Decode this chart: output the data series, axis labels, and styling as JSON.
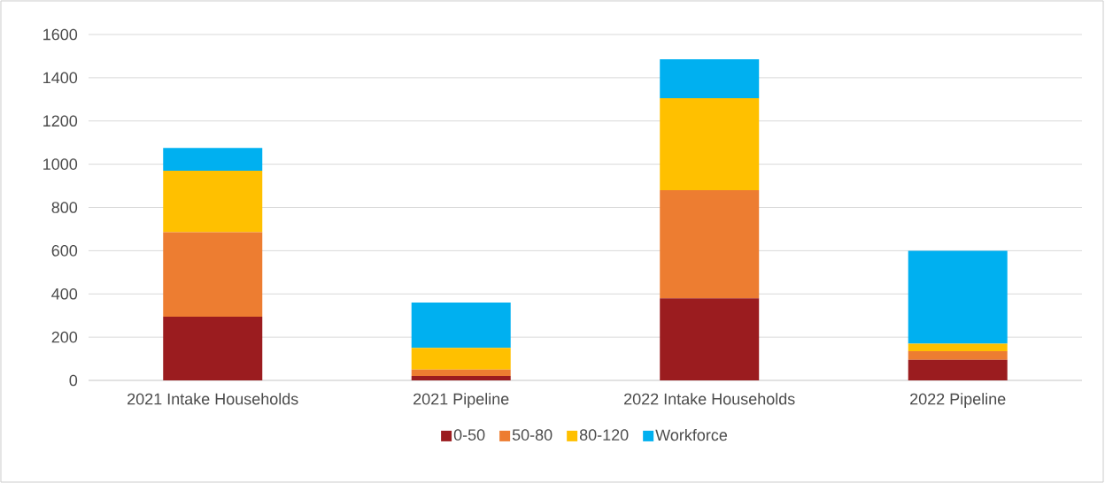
{
  "chart_data": {
    "type": "bar",
    "stacked": true,
    "categories": [
      "2021 Intake Households",
      "2021 Pipeline",
      "2022 Intake Households",
      "2022 Pipeline"
    ],
    "series": [
      {
        "name": "0-50",
        "color": "#9b1c1f",
        "values": [
          295,
          20,
          380,
          95
        ]
      },
      {
        "name": "50-80",
        "color": "#ed7d31",
        "values": [
          390,
          30,
          500,
          40
        ]
      },
      {
        "name": "80-120",
        "color": "#ffc000",
        "values": [
          285,
          100,
          425,
          35
        ]
      },
      {
        "name": "Workforce",
        "color": "#00b0f0",
        "values": [
          105,
          210,
          180,
          430
        ]
      }
    ],
    "ylim": [
      0,
      1600
    ],
    "yticks": [
      0,
      200,
      400,
      600,
      800,
      1000,
      1200,
      1400,
      1600
    ],
    "grid": "y",
    "legend": "bottom"
  }
}
